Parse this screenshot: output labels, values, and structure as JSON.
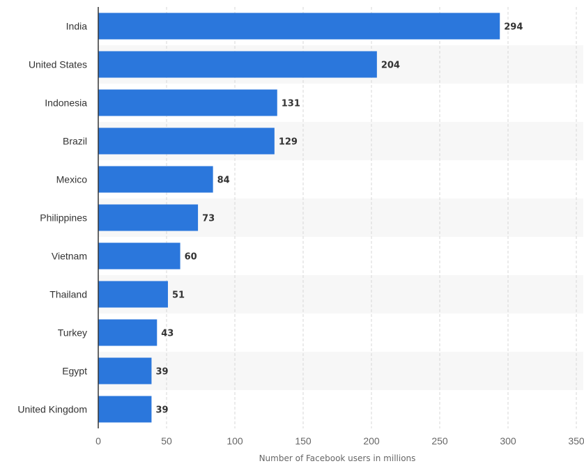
{
  "chart_data": {
    "type": "bar",
    "orientation": "horizontal",
    "categories": [
      "India",
      "United States",
      "Indonesia",
      "Brazil",
      "Mexico",
      "Philippines",
      "Vietnam",
      "Thailand",
      "Turkey",
      "Egypt",
      "United Kingdom"
    ],
    "values": [
      294,
      204,
      131,
      129,
      84,
      73,
      60,
      51,
      43,
      39,
      39
    ],
    "title": "",
    "xlabel": "Number of Facebook users in millions",
    "ylabel": "",
    "xlim": [
      0,
      350
    ],
    "xticks": [
      0,
      50,
      100,
      150,
      200,
      250,
      300,
      350
    ],
    "grid": "vertical dashed",
    "data_labels": true,
    "colors": {
      "bar": "#2b77dc",
      "alt_row_band": "#f7f7f7",
      "grid": "#d7d7d7",
      "axis": "#333333"
    }
  }
}
